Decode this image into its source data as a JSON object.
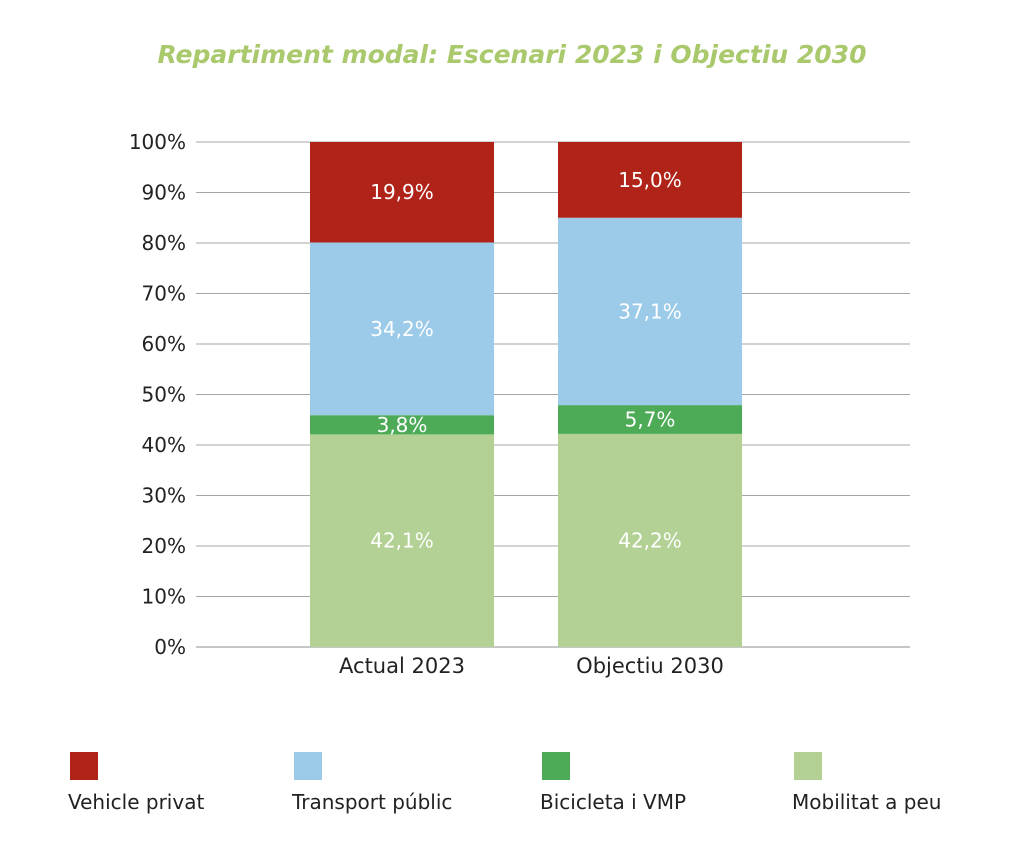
{
  "chart_data": {
    "type": "bar",
    "stacked": true,
    "title": "Repartiment modal: Escenari 2023 i Objectiu 2030",
    "categories": [
      "Actual 2023",
      "Objectiu 2030"
    ],
    "series": [
      {
        "name": "Mobilitat a peu",
        "values": [
          42.1,
          42.2
        ],
        "labels": [
          "42,1%",
          "42,2%"
        ],
        "color": "#b3d194"
      },
      {
        "name": "Bicicleta i VMP",
        "values": [
          3.8,
          5.7
        ],
        "labels": [
          "3,8%",
          "5,7%"
        ],
        "color": "#4daa57"
      },
      {
        "name": "Transport públic",
        "values": [
          34.2,
          37.1
        ],
        "labels": [
          "34,2%",
          "37,1%"
        ],
        "color": "#9ccbea"
      },
      {
        "name": "Vehicle privat",
        "values": [
          19.9,
          15.0
        ],
        "labels": [
          "19,9%",
          "15,0%"
        ],
        "color": "#b02318"
      }
    ],
    "y_ticks": [
      "0%",
      "10%",
      "20%",
      "30%",
      "40%",
      "50%",
      "60%",
      "70%",
      "80%",
      "90%",
      "100%"
    ],
    "ylim": [
      0,
      100
    ],
    "grid": true,
    "legend_position": "bottom",
    "title_color": "#a9c96c"
  }
}
